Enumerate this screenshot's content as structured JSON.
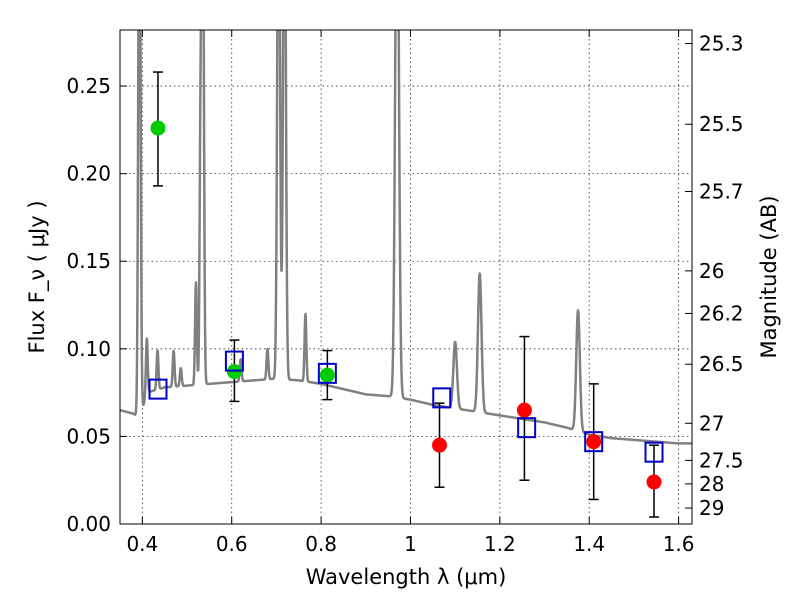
{
  "chart_data": {
    "type": "scatter",
    "xlabel": "Wavelength  λ (μm)",
    "ylabel": "Flux  F_ν  ( μJy )",
    "ylabel_right": "Magnitude (AB)",
    "xlim": [
      0.35,
      1.63
    ],
    "ylim": [
      0.0,
      0.282
    ],
    "grid": true,
    "x_ticks": [
      {
        "value": 0.4,
        "label": "0.4"
      },
      {
        "value": 0.6,
        "label": "0.6"
      },
      {
        "value": 0.8,
        "label": "0.8"
      },
      {
        "value": 1.0,
        "label": "1"
      },
      {
        "value": 1.2,
        "label": "1.2"
      },
      {
        "value": 1.4,
        "label": "1.4"
      },
      {
        "value": 1.6,
        "label": "1.6"
      }
    ],
    "y_ticks": [
      {
        "value": 0.0,
        "label": "0.00"
      },
      {
        "value": 0.05,
        "label": "0.05"
      },
      {
        "value": 0.1,
        "label": "0.10"
      },
      {
        "value": 0.15,
        "label": "0.15"
      },
      {
        "value": 0.2,
        "label": "0.20"
      },
      {
        "value": 0.25,
        "label": "0.25"
      }
    ],
    "right_ticks": [
      {
        "flux": 0.2743,
        "label": "25.3"
      },
      {
        "flux": 0.2282,
        "label": "25.5"
      },
      {
        "flux": 0.1898,
        "label": "25.7"
      },
      {
        "flux": 0.1445,
        "label": "26"
      },
      {
        "flux": 0.1202,
        "label": "26.2"
      },
      {
        "flux": 0.0912,
        "label": "26.5"
      },
      {
        "flux": 0.0575,
        "label": "27"
      },
      {
        "flux": 0.0363,
        "label": "27.5"
      },
      {
        "flux": 0.0229,
        "label": "28"
      },
      {
        "flux": 0.0091,
        "label": "29"
      }
    ],
    "series": [
      {
        "marker": "circle",
        "color": "#00cc00",
        "points": [
          {
            "x": 0.435,
            "y": 0.226,
            "err": [
              0.193,
              0.258
            ]
          },
          {
            "x": 0.606,
            "y": 0.087,
            "err": [
              0.07,
              0.105
            ]
          },
          {
            "x": 0.814,
            "y": 0.085,
            "err": [
              0.071,
              0.099
            ]
          }
        ]
      },
      {
        "marker": "circle",
        "color": "#ff0000",
        "points": [
          {
            "x": 1.065,
            "y": 0.045,
            "err": [
              0.021,
              0.069
            ]
          },
          {
            "x": 1.255,
            "y": 0.065,
            "err": [
              0.025,
              0.107
            ]
          },
          {
            "x": 1.41,
            "y": 0.047,
            "err": [
              0.014,
              0.08
            ]
          },
          {
            "x": 1.545,
            "y": 0.024,
            "err": [
              0.004,
              0.045
            ]
          }
        ]
      },
      {
        "marker": "square-open",
        "color": "#0000cc",
        "points": [
          {
            "x": 0.435,
            "y": 0.077
          },
          {
            "x": 0.606,
            "y": 0.093
          },
          {
            "x": 0.814,
            "y": 0.086
          },
          {
            "x": 1.07,
            "y": 0.072
          },
          {
            "x": 1.26,
            "y": 0.055
          },
          {
            "x": 1.41,
            "y": 0.047
          },
          {
            "x": 1.545,
            "y": 0.041
          }
        ]
      }
    ],
    "model_spectrum": {
      "color": "#808080",
      "continuum": [
        [
          0.35,
          0.065
        ],
        [
          0.38,
          0.063
        ],
        [
          0.395,
          0.06
        ],
        [
          0.41,
          0.075
        ],
        [
          0.45,
          0.078
        ],
        [
          0.5,
          0.079
        ],
        [
          0.55,
          0.08
        ],
        [
          0.6,
          0.081
        ],
        [
          0.65,
          0.082
        ],
        [
          0.7,
          0.083
        ],
        [
          0.75,
          0.082
        ],
        [
          0.8,
          0.08
        ],
        [
          0.85,
          0.077
        ],
        [
          0.9,
          0.074
        ],
        [
          0.95,
          0.073
        ],
        [
          1.0,
          0.071
        ],
        [
          1.05,
          0.068
        ],
        [
          1.1,
          0.066
        ],
        [
          1.15,
          0.064
        ],
        [
          1.2,
          0.062
        ],
        [
          1.25,
          0.06
        ],
        [
          1.3,
          0.058
        ],
        [
          1.35,
          0.055
        ],
        [
          1.4,
          0.051
        ],
        [
          1.45,
          0.049
        ],
        [
          1.5,
          0.048
        ],
        [
          1.55,
          0.047
        ],
        [
          1.6,
          0.046
        ],
        [
          1.63,
          0.046
        ]
      ],
      "lines": [
        {
          "x": 0.3935,
          "peak": 0.4,
          "w": 0.0025
        },
        {
          "x": 0.41,
          "peak": 0.106,
          "w": 0.002
        },
        {
          "x": 0.434,
          "peak": 0.099,
          "w": 0.002
        },
        {
          "x": 0.47,
          "peak": 0.099,
          "w": 0.002
        },
        {
          "x": 0.486,
          "peak": 0.089,
          "w": 0.002
        },
        {
          "x": 0.52,
          "peak": 0.138,
          "w": 0.002
        },
        {
          "x": 0.53,
          "peak": 0.21,
          "w": 0.002
        },
        {
          "x": 0.535,
          "peak": 0.4,
          "w": 0.0025
        },
        {
          "x": 0.62,
          "peak": 0.094,
          "w": 0.002
        },
        {
          "x": 0.68,
          "peak": 0.1,
          "w": 0.002
        },
        {
          "x": 0.705,
          "peak": 0.4,
          "w": 0.003
        },
        {
          "x": 0.718,
          "peak": 0.4,
          "w": 0.003
        },
        {
          "x": 0.765,
          "peak": 0.12,
          "w": 0.002
        },
        {
          "x": 0.97,
          "peak": 0.4,
          "w": 0.004
        },
        {
          "x": 1.1,
          "peak": 0.104,
          "w": 0.004
        },
        {
          "x": 1.155,
          "peak": 0.143,
          "w": 0.004
        },
        {
          "x": 1.375,
          "peak": 0.122,
          "w": 0.004
        }
      ]
    }
  }
}
